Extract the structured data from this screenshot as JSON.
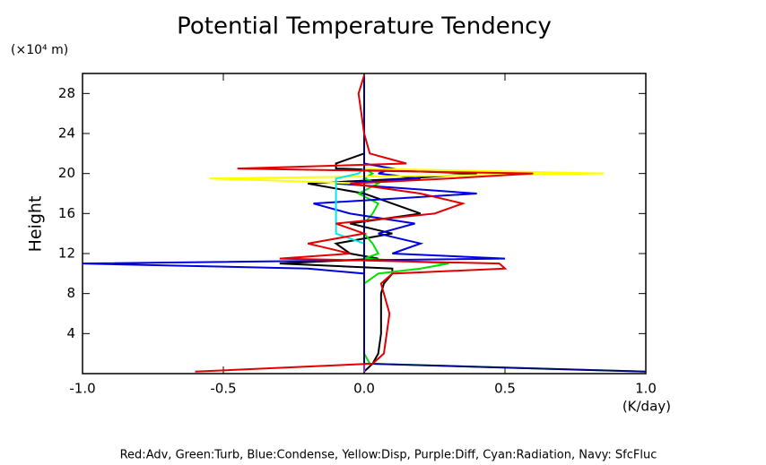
{
  "chart_data": {
    "type": "line",
    "title": "Potential Temperature Tendency",
    "y_unit": "(×10⁴ m)",
    "y_label": "Height",
    "x_unit": "(K/day)",
    "legend_text": "Red:Adv, Green:Turb, Blue:Condense, Yellow:Disp, Purple:Diff, Cyan:Radiation, Navy: SfcFluc",
    "xlim": [
      -1.0,
      1.0
    ],
    "xticks": [
      {
        "value": -1.0,
        "label": "-1.0"
      },
      {
        "value": -0.5,
        "label": "-0.5"
      },
      {
        "value": 0,
        "label": "0.0"
      },
      {
        "value": 0.5,
        "label": "0.5"
      },
      {
        "value": 1.0,
        "label": "1.0"
      }
    ],
    "ylim": [
      0,
      30
    ],
    "yticks": [
      4,
      8,
      12,
      16,
      20,
      24,
      28
    ],
    "y": [
      0.2,
      1,
      2,
      4,
      6,
      8,
      9,
      10,
      10.5,
      11,
      11.5,
      12,
      13,
      14,
      15,
      16,
      17,
      18,
      19,
      19.5,
      20,
      20.5,
      21,
      22,
      24,
      26,
      28,
      29.8
    ],
    "series": [
      {
        "color": "#000000",
        "values": [
          0.0,
          0.03,
          0.05,
          0.06,
          0.06,
          0.06,
          0.07,
          0.1,
          0.1,
          -0.3,
          0.05,
          -0.05,
          -0.1,
          0.1,
          -0.05,
          0.2,
          0.1,
          0.0,
          -0.2,
          0.15,
          0.4,
          -0.1,
          -0.1,
          0.0,
          0.0,
          0.0,
          0.0,
          0.0
        ]
      },
      {
        "color": "#00e000",
        "values": [
          1.0,
          0.02,
          0.0,
          0.0,
          0.0,
          0.0,
          0.0,
          0.05,
          0.2,
          0.3,
          0.0,
          0.05,
          0.03,
          0.0,
          0.0,
          0.03,
          0.05,
          -0.02,
          0.05,
          0.0,
          0.03,
          0.0,
          0.0,
          0.0,
          0.0,
          0.0,
          0.0,
          0.0
        ]
      },
      {
        "color": "#0000e0",
        "values": [
          0.0,
          0.0,
          0.0,
          0.0,
          0.0,
          0.0,
          0.0,
          0.0,
          -0.2,
          -1.0,
          0.5,
          0.1,
          0.2,
          0.05,
          0.18,
          -0.05,
          -0.18,
          0.4,
          -0.1,
          0.2,
          0.05,
          0.1,
          0.0,
          0.0,
          0.0,
          0.0,
          0.0,
          0.0
        ]
      },
      {
        "color": "#ffff00",
        "values": [
          0.0,
          0.0,
          0.0,
          0.0,
          0.0,
          0.0,
          0.0,
          0.0,
          0.0,
          0.0,
          0.0,
          0.0,
          0.0,
          0.0,
          0.0,
          0.0,
          0.0,
          0.0,
          0.0,
          -0.55,
          0.85,
          0.0,
          0.0,
          0.0,
          0.0,
          0.0,
          0.0,
          0.0
        ]
      },
      {
        "color": "#00e8e8",
        "values": [
          0.0,
          0.0,
          0.0,
          0.0,
          0.0,
          0.0,
          0.0,
          0.0,
          0.0,
          0.0,
          0.0,
          0.0,
          0.0,
          -0.1,
          -0.1,
          -0.1,
          -0.1,
          -0.1,
          -0.1,
          -0.1,
          -0.02,
          0.0,
          0.0,
          0.0,
          0.0,
          0.0,
          0.0,
          0.0
        ]
      },
      {
        "color": "#a020f0",
        "values": [
          0.0,
          0.0,
          0.0,
          0.0,
          0.0,
          0.0,
          0.0,
          0.0,
          0.0,
          0.0,
          0.0,
          0.0,
          0.0,
          0.0,
          0.0,
          0.0,
          0.0,
          0.0,
          0.0,
          0.0,
          0.0,
          0.0,
          0.0,
          0.0,
          0.0,
          0.0,
          0.0,
          0.0
        ]
      },
      {
        "color": "#000080",
        "values": [
          1.0,
          0.0,
          0.0,
          0.0,
          0.0,
          0.0,
          0.0,
          0.0,
          0.0,
          0.0,
          0.0,
          0.0,
          0.0,
          0.0,
          0.0,
          0.0,
          0.0,
          0.0,
          0.0,
          0.0,
          0.0,
          0.0,
          0.0,
          0.0,
          0.0,
          0.0,
          0.0,
          0.0
        ]
      },
      {
        "color": "#e00000",
        "values": [
          -0.6,
          0.03,
          0.07,
          0.08,
          0.09,
          0.07,
          0.06,
          0.1,
          0.5,
          0.48,
          -0.3,
          -0.05,
          -0.2,
          0.0,
          -0.1,
          0.25,
          0.35,
          0.2,
          -0.05,
          0.3,
          0.6,
          -0.45,
          0.15,
          0.02,
          0.0,
          -0.01,
          -0.02,
          0.0
        ]
      }
    ]
  }
}
